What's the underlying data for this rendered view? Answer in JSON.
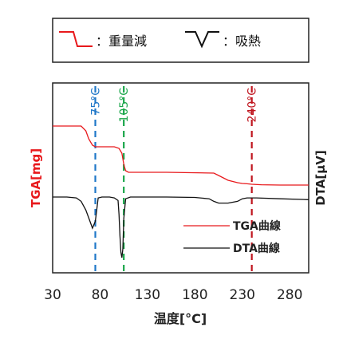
{
  "colors": {
    "tga": "#e8191c",
    "dta": "#111111",
    "marker_75": "#1f77c8",
    "marker_105": "#1aa64a",
    "marker_240": "#c0161f"
  },
  "legend": {
    "weight_loss": "：重量減",
    "endotherm": "：吸熱"
  },
  "chart_data": {
    "type": "line",
    "xlabel": "温度[°C]",
    "ylabel_left": "TGA[mg]",
    "ylabel_right": "DTA[μV]",
    "xlim": [
      30,
      300
    ],
    "xticks": [
      "30",
      "80",
      "130",
      "180",
      "230",
      "280"
    ],
    "grid": false,
    "legend_position": "lower-right",
    "series": [
      {
        "name": "TGA曲線",
        "x": [
          30,
          50,
          60,
          65,
          68,
          72,
          75,
          80,
          95,
          100,
          103,
          105,
          107,
          110,
          150,
          200,
          205,
          215,
          225,
          230,
          235,
          240,
          250,
          270,
          300
        ],
        "y": [
          100,
          100,
          100,
          97,
          92,
          88,
          87,
          87,
          87,
          86,
          83,
          76,
          72,
          71,
          71,
          70.5,
          69,
          66,
          64.5,
          64,
          63.8,
          63.5,
          63.2,
          63,
          63
        ]
      },
      {
        "name": "DTA曲線",
        "x": [
          30,
          45,
          55,
          60,
          65,
          70,
          72,
          75,
          78,
          82,
          90,
          95,
          99,
          100,
          101,
          102,
          103,
          104,
          105,
          107,
          112,
          120,
          150,
          180,
          195,
          200,
          205,
          215,
          225,
          230,
          235,
          245,
          270,
          300
        ],
        "y": [
          100,
          100,
          99,
          95,
          85,
          70,
          64,
          72,
          99,
          100,
          100,
          99,
          96,
          80,
          55,
          36,
          30,
          40,
          75,
          98,
          100,
          100,
          100,
          99.5,
          98,
          95,
          93,
          93,
          95,
          98,
          99,
          99,
          98,
          97
        ]
      }
    ],
    "annotations": [
      "75°C",
      "105°C",
      "240°C"
    ]
  }
}
